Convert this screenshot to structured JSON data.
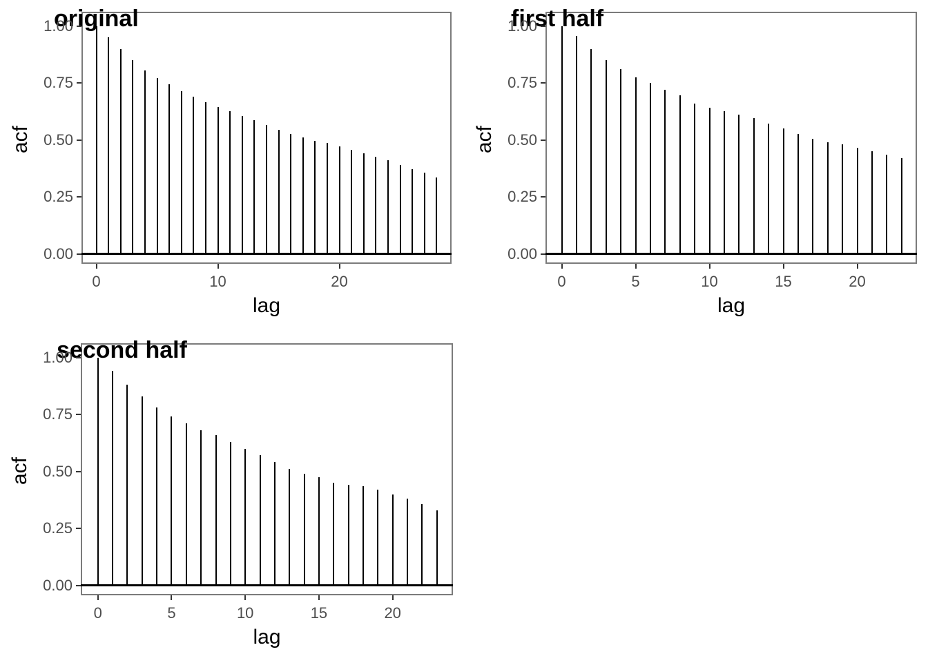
{
  "figure": {
    "background_color": "#ffffff",
    "spike_color": "#000000",
    "panel_border_color": "#7b7b7b",
    "tick_label_color": "#4d4d4d",
    "axis_title_color": "#000000",
    "title_color": "#000000"
  },
  "chart_data": [
    {
      "type": "bar",
      "subtype": "acf-spike-stem",
      "title": "original",
      "xlabel": "lag",
      "ylabel": "acf",
      "ylim": [
        0,
        1
      ],
      "grid": false,
      "legend": false,
      "x": [
        0,
        1,
        2,
        3,
        4,
        5,
        6,
        7,
        8,
        9,
        10,
        11,
        12,
        13,
        14,
        15,
        16,
        17,
        18,
        19,
        20,
        21,
        22,
        23,
        24,
        25,
        26,
        27,
        28
      ],
      "values": [
        1.0,
        0.95,
        0.9,
        0.85,
        0.805,
        0.77,
        0.745,
        0.715,
        0.69,
        0.665,
        0.645,
        0.625,
        0.605,
        0.585,
        0.565,
        0.545,
        0.525,
        0.51,
        0.495,
        0.485,
        0.47,
        0.455,
        0.44,
        0.425,
        0.41,
        0.39,
        0.37,
        0.355,
        0.335
      ],
      "x_ticks": [
        0,
        10,
        20
      ],
      "y_ticks": [
        "0.00",
        "0.25",
        "0.50",
        "0.75",
        "1.00"
      ]
    },
    {
      "type": "bar",
      "subtype": "acf-spike-stem",
      "title": "first half",
      "xlabel": "lag",
      "ylabel": "acf",
      "ylim": [
        0,
        1
      ],
      "grid": false,
      "legend": false,
      "x": [
        0,
        1,
        2,
        3,
        4,
        5,
        6,
        7,
        8,
        9,
        10,
        11,
        12,
        13,
        14,
        15,
        16,
        17,
        18,
        19,
        20,
        21,
        22,
        23
      ],
      "values": [
        1.0,
        0.955,
        0.9,
        0.85,
        0.81,
        0.775,
        0.75,
        0.72,
        0.695,
        0.66,
        0.64,
        0.625,
        0.61,
        0.595,
        0.57,
        0.55,
        0.525,
        0.505,
        0.49,
        0.48,
        0.465,
        0.45,
        0.435,
        0.42
      ],
      "x_ticks": [
        0,
        5,
        10,
        15,
        20
      ],
      "y_ticks": [
        "0.00",
        "0.25",
        "0.50",
        "0.75",
        "1.00"
      ]
    },
    {
      "type": "bar",
      "subtype": "acf-spike-stem",
      "title": "second half",
      "xlabel": "lag",
      "ylabel": "acf",
      "ylim": [
        0,
        1
      ],
      "grid": false,
      "legend": false,
      "x": [
        0,
        1,
        2,
        3,
        4,
        5,
        6,
        7,
        8,
        9,
        10,
        11,
        12,
        13,
        14,
        15,
        16,
        17,
        18,
        19,
        20,
        21,
        22,
        23
      ],
      "values": [
        1.0,
        0.94,
        0.88,
        0.83,
        0.78,
        0.74,
        0.71,
        0.68,
        0.66,
        0.63,
        0.6,
        0.57,
        0.54,
        0.51,
        0.49,
        0.475,
        0.45,
        0.44,
        0.435,
        0.42,
        0.4,
        0.38,
        0.355,
        0.33
      ],
      "x_ticks": [
        0,
        5,
        10,
        15,
        20
      ],
      "y_ticks": [
        "0.00",
        "0.25",
        "0.50",
        "0.75",
        "1.00"
      ]
    }
  ]
}
